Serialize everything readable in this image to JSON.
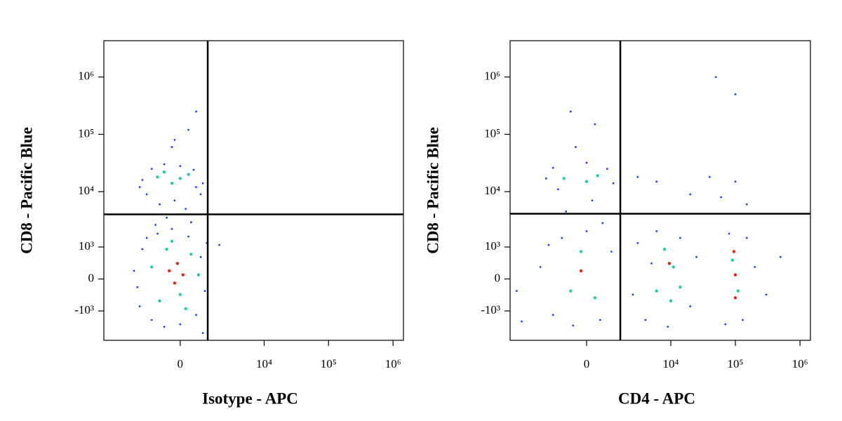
{
  "chart_data": [
    {
      "type": "scatter",
      "x_label": "Isotype - APC",
      "y_label": "CD8 - Pacific Blue",
      "xscale": "biexponential",
      "yscale": "biexponential",
      "xlim": [
        -7600,
        1450000
      ],
      "ylim": [
        -3500,
        4300000
      ],
      "xticks": [
        0,
        {
          "value": 10000,
          "label": "10⁴"
        },
        {
          "value": 100000,
          "label": "10⁵"
        },
        {
          "value": 1000000,
          "label": "10⁶"
        }
      ],
      "yticks": [
        {
          "value": -1000,
          "label": "-10³"
        },
        0,
        {
          "value": 1000,
          "label": "10³"
        },
        {
          "value": 10000,
          "label": "10⁴"
        },
        {
          "value": 100000,
          "label": "10⁵"
        },
        {
          "value": 1000000,
          "label": "10⁶"
        }
      ],
      "gates": {
        "x": 1150,
        "y": 4000
      },
      "series": [
        {
          "color": "#1f3fff",
          "x": [
            -2500,
            -2000,
            -1800,
            -1500,
            -1200,
            -900,
            -600,
            -300,
            0,
            300,
            600,
            800,
            1000,
            1100,
            -2200,
            -1000,
            400,
            -500,
            200,
            -800,
            -1500,
            -1800,
            -1200,
            -600,
            0,
            500,
            900,
            800,
            -200,
            600,
            -2000,
            -300,
            300,
            600,
            -200,
            1900,
            900
          ],
          "values": [
            200,
            -800,
            900,
            1500,
            -1500,
            1800,
            -2000,
            2200,
            -1800,
            1600,
            -1200,
            600,
            -300,
            1200,
            -200,
            2600,
            2900,
            3500,
            5000,
            6000,
            9000,
            16000,
            25000,
            30000,
            28000,
            24000,
            14000,
            9000,
            7000,
            12000,
            12000,
            60000,
            120000,
            250000,
            80000,
            1100,
            -2600
          ]
        },
        {
          "color": "#20d0a0",
          "x": [
            -1200,
            -800,
            -500,
            0,
            400,
            700,
            -300,
            200,
            -900,
            -300,
            300,
            0,
            -600
          ],
          "values": [
            300,
            -600,
            900,
            -400,
            700,
            100,
            1300,
            -900,
            18000,
            14000,
            20000,
            17000,
            22000
          ]
        },
        {
          "color": "#f02010",
          "x": [
            -400,
            -100,
            -200,
            100
          ],
          "values": [
            200,
            400,
            -100,
            100
          ]
        }
      ]
    },
    {
      "type": "scatter",
      "x_label": "CD4 - APC",
      "y_label": "CD8 - Pacific Blue",
      "xscale": "biexponential",
      "yscale": "biexponential",
      "xlim": [
        -7600,
        1450000
      ],
      "ylim": [
        -3500,
        4300000
      ],
      "xticks": [
        0,
        {
          "value": 10000,
          "label": "10⁴"
        },
        {
          "value": 100000,
          "label": "10⁵"
        },
        {
          "value": 1000000,
          "label": "10⁶"
        }
      ],
      "yticks": [
        {
          "value": -1000,
          "label": "-10³"
        },
        0,
        {
          "value": 1000,
          "label": "10³"
        },
        {
          "value": 10000,
          "label": "10⁴"
        },
        {
          "value": 100000,
          "label": "10⁵"
        },
        {
          "value": 1000000,
          "label": "10⁶"
        }
      ],
      "gates": {
        "x": 1510,
        "y": 4100
      },
      "series": [
        {
          "color": "#1f3fff",
          "x": [
            -2500,
            -1500,
            -1000,
            -500,
            0,
            500,
            1000,
            -1800,
            600,
            -800,
            200,
            -1200,
            -2000,
            -1500,
            0,
            800,
            1100,
            -400,
            300,
            -600,
            2500,
            3000,
            4000,
            6000,
            9000,
            14000,
            20000,
            25000,
            5000,
            70000,
            80000,
            130000,
            150000,
            200000,
            300000,
            500000,
            3000,
            6000,
            20000,
            40000,
            60000,
            100000,
            150000,
            50000,
            100000,
            -5000,
            -6000
          ],
          "values": [
            300,
            -1200,
            1500,
            -1900,
            2000,
            -1500,
            800,
            1100,
            2800,
            4500,
            7000,
            11000,
            17000,
            26000,
            32000,
            25000,
            14000,
            60000,
            150000,
            250000,
            -400,
            1200,
            -1500,
            2000,
            -2000,
            1500,
            -800,
            600,
            400,
            -1800,
            1800,
            -1500,
            1500,
            300,
            -400,
            600,
            18000,
            15000,
            9000,
            18000,
            8000,
            15000,
            6000,
            1000000,
            500000,
            -1600,
            -300
          ]
        },
        {
          "color": "#20d0a0",
          "x": [
            -600,
            -200,
            300,
            -900,
            0,
            400,
            6000,
            8000,
            11000,
            14000,
            10000,
            90000,
            110000
          ],
          "values": [
            -300,
            800,
            -500,
            17000,
            15000,
            19000,
            -300,
            900,
            300,
            -200,
            -600,
            500,
            -300
          ]
        },
        {
          "color": "#f02010",
          "x": [
            -200,
            9500,
            100000,
            100000,
            95000
          ],
          "values": [
            200,
            400,
            100,
            -500,
            800
          ]
        }
      ]
    }
  ]
}
